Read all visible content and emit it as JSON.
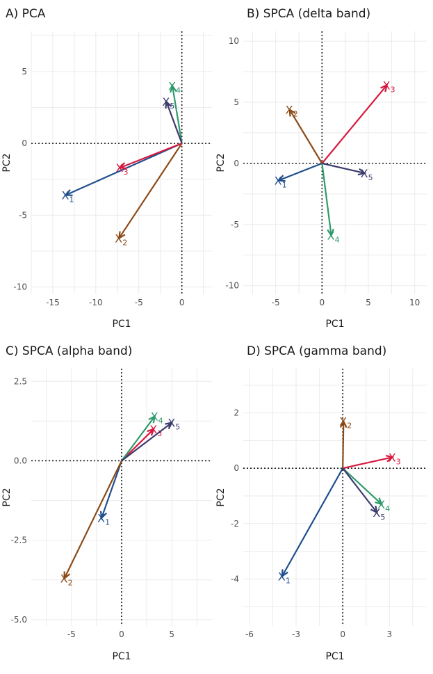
{
  "colors": {
    "X1": "#1f4e8c",
    "X2": "#8b4a17",
    "X3": "#d7193f",
    "X4": "#2e9a6a",
    "X5": "#3c3c6e"
  },
  "chart_data": [
    {
      "type": "biplot",
      "title": "A) PCA",
      "xlabel": "PC1",
      "ylabel": "PC2",
      "xlim": [
        -17.5,
        3.5
      ],
      "ylim": [
        -10.5,
        7.8
      ],
      "xticks": [
        -15,
        -10,
        -5,
        0
      ],
      "xtick_labels": [
        "-15",
        "-10",
        "-5",
        "0"
      ],
      "yticks": [
        -10,
        -5,
        0,
        5
      ],
      "ytick_labels": [
        "-10",
        "-5",
        "0",
        "5"
      ],
      "vectors": [
        {
          "name": "X",
          "sub": "1",
          "color_key": "X1",
          "x": -13.5,
          "y": -3.6
        },
        {
          "name": "X",
          "sub": "2",
          "color_key": "X2",
          "x": -7.3,
          "y": -6.6
        },
        {
          "name": "X",
          "sub": "3",
          "color_key": "X3",
          "x": -7.2,
          "y": -1.7
        },
        {
          "name": "X",
          "sub": "4",
          "color_key": "X4",
          "x": -1.1,
          "y": 4.0
        },
        {
          "name": "X",
          "sub": "5",
          "color_key": "X5",
          "x": -1.8,
          "y": 2.9
        }
      ]
    },
    {
      "type": "biplot",
      "title": "B) SPCA (delta band)",
      "xlabel": "PC1",
      "ylabel": "PC2",
      "xlim": [
        -8.5,
        11.3
      ],
      "ylim": [
        -10.7,
        10.8
      ],
      "xticks": [
        -5,
        0,
        5,
        10
      ],
      "xtick_labels": [
        "-5",
        "0",
        "5",
        "10"
      ],
      "yticks": [
        -10,
        -5,
        0,
        5,
        10
      ],
      "ytick_labels": [
        "-10",
        "-5",
        "0",
        "5",
        "10"
      ],
      "vectors": [
        {
          "name": "X",
          "sub": "1",
          "color_key": "X1",
          "x": -4.7,
          "y": -1.4
        },
        {
          "name": "X",
          "sub": "2",
          "color_key": "X2",
          "x": -3.5,
          "y": 4.4
        },
        {
          "name": "X",
          "sub": "3",
          "color_key": "X3",
          "x": 7.0,
          "y": 6.4
        },
        {
          "name": "X",
          "sub": "4",
          "color_key": "X4",
          "x": 1.0,
          "y": -5.9
        },
        {
          "name": "X",
          "sub": "5",
          "color_key": "X5",
          "x": 4.6,
          "y": -0.8
        }
      ]
    },
    {
      "type": "biplot",
      "title": "C) SPCA (alpha band)",
      "xlabel": "PC1",
      "ylabel": "PC2",
      "xlim": [
        -9.0,
        9.0
      ],
      "ylim": [
        -5.2,
        2.9
      ],
      "xticks": [
        -5,
        0,
        5
      ],
      "xtick_labels": [
        "-5",
        "0",
        "5"
      ],
      "yticks": [
        -5,
        -2.5,
        0,
        2.5
      ],
      "ytick_labels": [
        "-5.0",
        "-2.5",
        "0.0",
        "2.5"
      ],
      "vectors": [
        {
          "name": "X",
          "sub": "1",
          "color_key": "X1",
          "x": -2.0,
          "y": -1.8
        },
        {
          "name": "X",
          "sub": "2",
          "color_key": "X2",
          "x": -5.7,
          "y": -3.7
        },
        {
          "name": "X",
          "sub": "3",
          "color_key": "X3",
          "x": 3.2,
          "y": 1.0
        },
        {
          "name": "X",
          "sub": "4",
          "color_key": "X4",
          "x": 3.3,
          "y": 1.4
        },
        {
          "name": "X",
          "sub": "5",
          "color_key": "X5",
          "x": 5.0,
          "y": 1.2
        }
      ]
    },
    {
      "type": "biplot",
      "title": "D) SPCA (gamma band)",
      "xlabel": "PC1",
      "ylabel": "PC2",
      "xlim": [
        -6.4,
        5.4
      ],
      "ylim": [
        -5.7,
        3.6
      ],
      "xticks": [
        -6,
        -3,
        0,
        3
      ],
      "xtick_labels": [
        "-6",
        "-3",
        "0",
        "3"
      ],
      "yticks": [
        -4,
        -2,
        0,
        2
      ],
      "ytick_labels": [
        "-4",
        "-2",
        "0",
        "2"
      ],
      "vectors": [
        {
          "name": "X",
          "sub": "1",
          "color_key": "X1",
          "x": -3.9,
          "y": -3.9
        },
        {
          "name": "X",
          "sub": "2",
          "color_key": "X2",
          "x": 0.05,
          "y": 1.7
        },
        {
          "name": "X",
          "sub": "3",
          "color_key": "X3",
          "x": 3.2,
          "y": 0.4
        },
        {
          "name": "X",
          "sub": "4",
          "color_key": "X4",
          "x": 2.5,
          "y": -1.3
        },
        {
          "name": "X",
          "sub": "5",
          "color_key": "X5",
          "x": 2.2,
          "y": -1.6
        }
      ]
    }
  ]
}
